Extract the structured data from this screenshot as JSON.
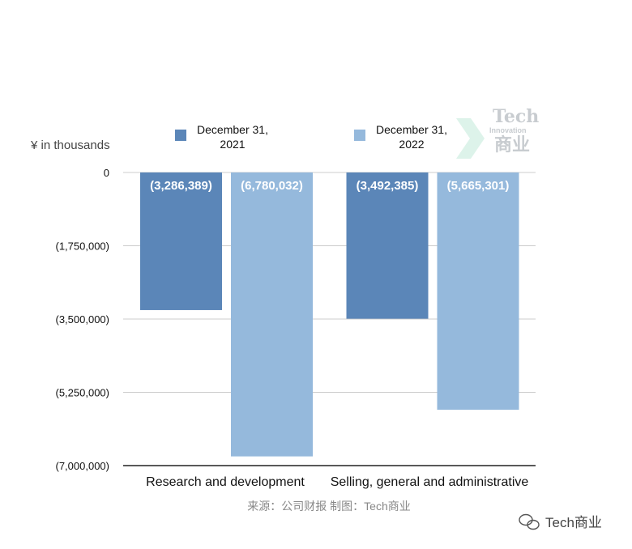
{
  "chart_data": {
    "type": "bar",
    "unit_label": "¥  in thousands",
    "categories": [
      "Research and development",
      "Selling, general and administrative"
    ],
    "series": [
      {
        "name": "December 31, 2021",
        "legend_lines": [
          "December 31,",
          "2021"
        ],
        "color": "#5b86b8",
        "values": [
          -3286389,
          -3492385
        ],
        "labels": [
          "(3,286,389)",
          "(3,492,385)"
        ]
      },
      {
        "name": "December 31, 2022",
        "legend_lines": [
          "December 31,",
          "2022"
        ],
        "color": "#95b9dc",
        "values": [
          -6780032,
          -5665301
        ],
        "labels": [
          "(6,780,032)",
          "(5,665,301)"
        ]
      }
    ],
    "ylim": [
      -7000000,
      0
    ],
    "yticks": [
      {
        "value": 0,
        "label": "0"
      },
      {
        "value": -1750000,
        "label": "(1,750,000)"
      },
      {
        "value": -3500000,
        "label": "(3,500,000)"
      },
      {
        "value": -5250000,
        "label": "(5,250,000)"
      },
      {
        "value": -7000000,
        "label": "(7,000,000)"
      }
    ],
    "grid": true,
    "legend_position": "top"
  },
  "source_text": "来源：公司财报 制图：Tech商业",
  "logo": {
    "title": "Tech",
    "subtitle": "Innovation",
    "cn": "商业"
  },
  "watermark": {
    "text": "Tech商业"
  }
}
